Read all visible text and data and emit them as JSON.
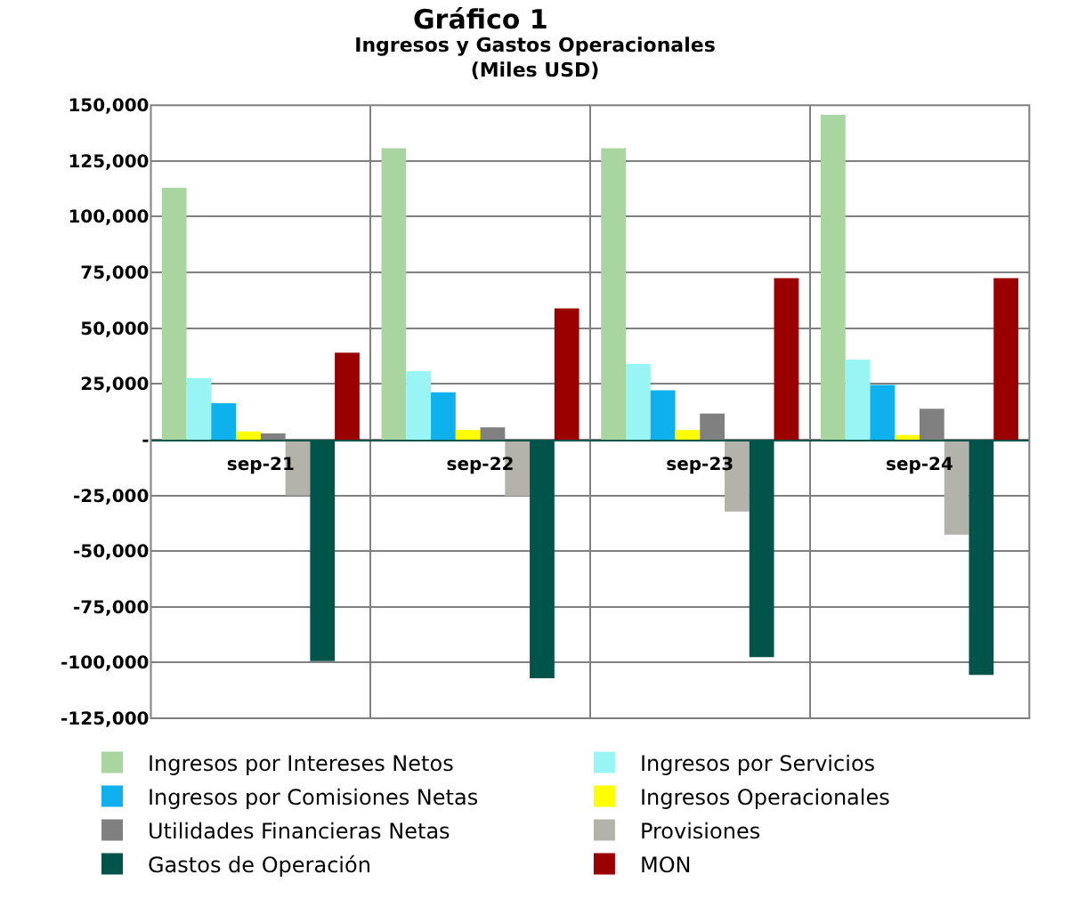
{
  "chart_data": {
    "type": "bar",
    "title": "Ingresos y Gastos Operacionales",
    "subtitle": "(Miles USD)",
    "annotations": [
      "Gráfico 1"
    ],
    "categories": [
      "sep-21",
      "sep-22",
      "sep-23",
      "sep-24"
    ],
    "series": [
      {
        "name": "Ingresos por Intereses Netos",
        "color": "#a9d5a0",
        "values": [
          113000,
          130700,
          130700,
          145700
        ]
      },
      {
        "name": "Ingresos por Servicios",
        "color": "#99f5f3",
        "values": [
          27600,
          30700,
          34000,
          35900
        ]
      },
      {
        "name": "Ingresos por Comisiones Netas",
        "color": "#0fb0ee",
        "values": [
          16300,
          21200,
          22100,
          24500
        ]
      },
      {
        "name": "Ingresos Operacionales",
        "color": "#ffff00",
        "values": [
          3700,
          4300,
          4300,
          2100
        ]
      },
      {
        "name": "Utilidades Financieras Netas",
        "color": "#808080",
        "values": [
          2800,
          5500,
          11700,
          13800
        ]
      },
      {
        "name": "Provisiones",
        "color": "#b3b3ab",
        "values": [
          -25000,
          -25300,
          -32300,
          -42700
        ]
      },
      {
        "name": "Gastos de Operación",
        "color": "#00544a",
        "values": [
          -99400,
          -107000,
          -97600,
          -105500
        ]
      },
      {
        "name": "MON",
        "color": "#9a0000",
        "values": [
          39000,
          58900,
          72400,
          72400
        ]
      }
    ],
    "ylim": [
      -125000,
      150000
    ],
    "yticks": [
      {
        "value": -125000,
        "label": "-125,000"
      },
      {
        "value": -100000,
        "label": "-100,000"
      },
      {
        "value": -75000,
        "label": "-75,000"
      },
      {
        "value": -50000,
        "label": "-50,000"
      },
      {
        "value": -25000,
        "label": "-25,000"
      },
      {
        "value": 0,
        "label": "-"
      },
      {
        "value": 25000,
        "label": "25,000"
      },
      {
        "value": 50000,
        "label": "50,000"
      },
      {
        "value": 75000,
        "label": "75,000"
      },
      {
        "value": 100000,
        "label": "100,000"
      },
      {
        "value": 125000,
        "label": "125,000"
      },
      {
        "value": 150000,
        "label": "150,000"
      }
    ],
    "grid": true,
    "legend": "bottom"
  }
}
